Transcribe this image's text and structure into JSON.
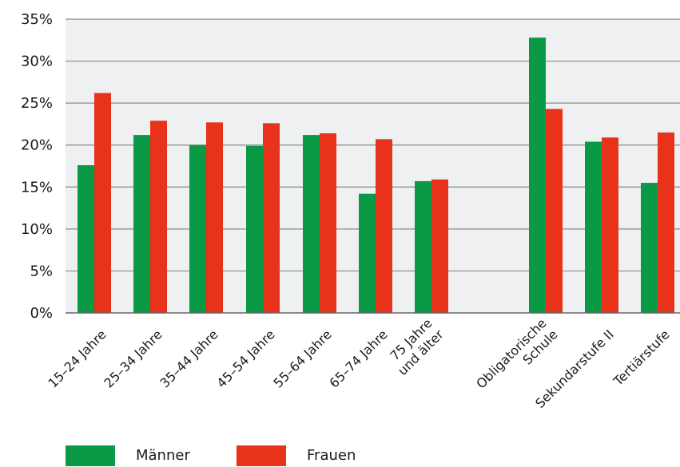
{
  "chart_data": {
    "type": "bar",
    "title": "",
    "xlabel": "",
    "ylabel": "",
    "ylim": [
      0,
      35
    ],
    "y_ticks": [
      "0%",
      "5%",
      "10%",
      "15%",
      "20%",
      "25%",
      "30%",
      "35%"
    ],
    "grid": true,
    "legend_position": "bottom-left",
    "categories": [
      [
        "15–24 Jahre"
      ],
      [
        "25–34 Jahre"
      ],
      [
        "35–44 Jahre"
      ],
      [
        "45–54 Jahre"
      ],
      [
        "55–64 Jahre"
      ],
      [
        "65–74 Jahre"
      ],
      [
        "75 Jahre",
        "und älter"
      ],
      [
        "Obligatorische",
        "Schule"
      ],
      [
        "Sekundarstufe II"
      ],
      [
        "Tertiärstufe"
      ]
    ],
    "series": [
      {
        "name": "Männer",
        "color": "#0a9a46",
        "values": [
          17.6,
          21.2,
          20.0,
          19.9,
          21.2,
          14.2,
          15.7,
          32.8,
          20.4,
          15.5
        ]
      },
      {
        "name": "Frauen",
        "color": "#e8321a",
        "values": [
          26.2,
          22.9,
          22.7,
          22.6,
          21.4,
          20.7,
          15.9,
          24.3,
          20.9,
          21.5
        ]
      }
    ]
  }
}
